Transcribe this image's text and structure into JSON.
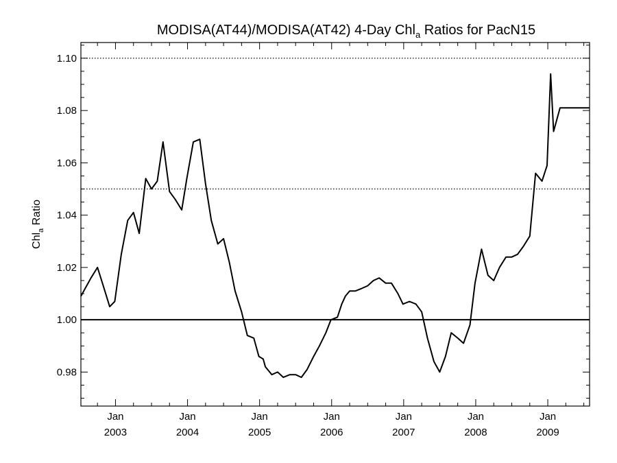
{
  "chart_data": {
    "type": "line",
    "title_main": "MODISA(AT44)/MODISA(AT42) 4-Day Chl",
    "title_sub": "a",
    "title_rest": " Ratios for PacN15",
    "ylabel_main": "Chl",
    "ylabel_sub": "a",
    "ylabel_rest": " Ratio",
    "ylim": [
      0.967,
      1.106
    ],
    "xlim": [
      2002.52,
      2009.58
    ],
    "y_ticks": [
      {
        "value": 0.98,
        "label": "0.98"
      },
      {
        "value": 1.0,
        "label": "1.00"
      },
      {
        "value": 1.02,
        "label": "1.02"
      },
      {
        "value": 1.04,
        "label": "1.04"
      },
      {
        "value": 1.06,
        "label": "1.06"
      },
      {
        "value": 1.08,
        "label": "1.08"
      },
      {
        "value": 1.1,
        "label": "1.10"
      }
    ],
    "x_ticks": [
      {
        "value": 2003.0,
        "month": "Jan",
        "year": "2003"
      },
      {
        "value": 2004.0,
        "month": "Jan",
        "year": "2004"
      },
      {
        "value": 2005.0,
        "month": "Jan",
        "year": "2005"
      },
      {
        "value": 2006.0,
        "month": "Jan",
        "year": "2006"
      },
      {
        "value": 2007.0,
        "month": "Jan",
        "year": "2007"
      },
      {
        "value": 2008.0,
        "month": "Jan",
        "year": "2008"
      },
      {
        "value": 2009.0,
        "month": "Jan",
        "year": "2009"
      }
    ],
    "reference_lines": [
      {
        "value": 1.0,
        "style": "solid"
      },
      {
        "value": 1.05,
        "style": "dotted"
      },
      {
        "value": 1.1,
        "style": "dotted"
      }
    ],
    "series": [
      {
        "x": [
          2002.52,
          2002.58,
          2002.66,
          2002.75,
          2002.83,
          2002.92,
          2002.99,
          2003.08,
          2003.17,
          2003.25,
          2003.33,
          2003.42,
          2003.5,
          2003.58,
          2003.66,
          2003.75,
          2003.83,
          2003.92,
          2003.99,
          2004.08,
          2004.17,
          2004.25,
          2004.33,
          2004.42,
          2004.5,
          2004.58,
          2004.66,
          2004.75,
          2004.83,
          2004.92,
          2004.99,
          2005.05,
          2005.08,
          2005.17,
          2005.25,
          2005.33,
          2005.42,
          2005.5,
          2005.58,
          2005.66,
          2005.75,
          2005.83,
          2005.92,
          2005.99,
          2006.08,
          2006.14,
          2006.19,
          2006.25,
          2006.33,
          2006.42,
          2006.5,
          2006.58,
          2006.66,
          2006.75,
          2006.83,
          2006.92,
          2006.99,
          2007.08,
          2007.17,
          2007.25,
          2007.33,
          2007.42,
          2007.5,
          2007.58,
          2007.66,
          2007.75,
          2007.83,
          2007.92,
          2007.99,
          2008.08,
          2008.17,
          2008.25,
          2008.33,
          2008.42,
          2008.5,
          2008.58,
          2008.66,
          2008.75,
          2008.83,
          2008.92,
          2008.99,
          2009.04,
          2009.08,
          2009.17,
          2009.25,
          2009.33,
          2009.42,
          2009.5,
          2009.58
        ],
        "y": [
          1.009,
          1.012,
          1.016,
          1.02,
          1.013,
          1.005,
          1.007,
          1.025,
          1.038,
          1.041,
          1.033,
          1.054,
          1.05,
          1.053,
          1.068,
          1.049,
          1.046,
          1.042,
          1.054,
          1.068,
          1.069,
          1.052,
          1.038,
          1.029,
          1.031,
          1.022,
          1.011,
          1.003,
          0.994,
          0.993,
          0.986,
          0.985,
          0.982,
          0.979,
          0.98,
          0.978,
          0.979,
          0.979,
          0.978,
          0.981,
          0.986,
          0.99,
          0.995,
          1.0,
          1.001,
          1.006,
          1.009,
          1.011,
          1.011,
          1.012,
          1.013,
          1.015,
          1.016,
          1.014,
          1.014,
          1.01,
          1.006,
          1.007,
          1.006,
          1.003,
          0.993,
          0.984,
          0.98,
          0.986,
          0.995,
          0.993,
          0.991,
          0.998,
          1.014,
          1.027,
          1.017,
          1.015,
          1.02,
          1.024,
          1.024,
          1.025,
          1.028,
          1.032,
          1.056,
          1.053,
          1.059,
          1.094,
          1.072,
          1.081,
          1.081,
          1.081,
          1.081,
          1.081,
          1.081
        ]
      }
    ]
  }
}
